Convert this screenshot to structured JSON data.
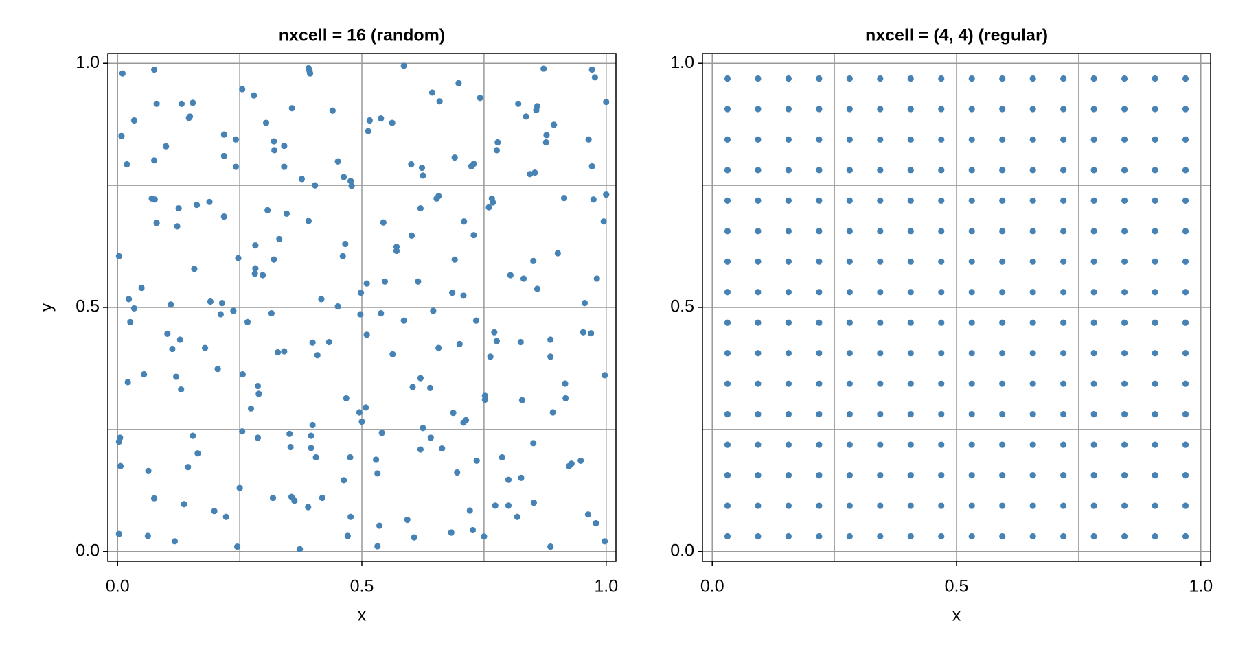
{
  "chart_data": [
    {
      "type": "scatter",
      "title": "nxcell = 16 (random)",
      "x_label": "x",
      "y_label": "y",
      "color": "#4682b4",
      "xlim": [
        -0.02,
        1.02
      ],
      "ylim": [
        -0.02,
        1.02
      ],
      "xticks": [
        {
          "value": 0,
          "label": "0.0"
        },
        0.5,
        {
          "value": 1,
          "label": "1.0"
        }
      ],
      "yticks": [
        {
          "value": 0,
          "label": "0.0"
        },
        0.5,
        {
          "value": 1,
          "label": "1.0"
        }
      ],
      "grid_lines": [
        0,
        0.25,
        0.5,
        0.75,
        1
      ],
      "x": [
        0.01,
        0.008,
        0.019,
        0.034,
        0.075,
        0.08,
        0.099,
        0.075,
        0.131,
        0.148,
        0.154,
        0.146,
        0.218,
        0.218,
        0.242,
        0.242,
        0.255,
        0.279,
        0.304,
        0.32,
        0.321,
        0.341,
        0.341,
        0.357,
        0.377,
        0.391,
        0.394,
        0.393,
        0.404,
        0.44,
        0.451,
        0.463,
        0.477,
        0.479,
        0.513,
        0.516,
        0.539,
        0.562,
        0.586,
        0.601,
        0.623,
        0.625,
        0.644,
        0.659,
        0.698,
        0.69,
        0.724,
        0.729,
        0.742,
        0.776,
        0.778,
        0.82,
        0.836,
        0.844,
        0.854,
        0.859,
        0.857,
        0.877,
        0.878,
        0.872,
        0.893,
        0.971,
        0.977,
        0.971,
        0.964,
        1.0,
        0.003,
        0.023,
        0.034,
        0.049,
        0.07,
        0.076,
        0.08,
        0.109,
        0.125,
        0.122,
        0.157,
        0.162,
        0.188,
        0.19,
        0.214,
        0.218,
        0.247,
        0.282,
        0.282,
        0.281,
        0.297,
        0.307,
        0.32,
        0.331,
        0.346,
        0.391,
        0.417,
        0.451,
        0.461,
        0.466,
        0.498,
        0.51,
        0.547,
        0.571,
        0.571,
        0.544,
        0.602,
        0.62,
        0.657,
        0.653,
        0.615,
        0.685,
        0.69,
        0.709,
        0.729,
        0.708,
        0.766,
        0.768,
        0.76,
        0.804,
        0.831,
        0.851,
        0.859,
        0.901,
        0.914,
        0.956,
        0.974,
        0.981,
        0.995,
        1.0,
        0.646,
        0.021,
        0.026,
        0.054,
        0.102,
        0.112,
        0.12,
        0.128,
        0.13,
        0.179,
        0.205,
        0.211,
        0.237,
        0.256,
        0.266,
        0.273,
        0.289,
        0.287,
        0.315,
        0.328,
        0.341,
        0.399,
        0.399,
        0.409,
        0.433,
        0.468,
        0.497,
        0.495,
        0.508,
        0.51,
        0.5,
        0.539,
        0.563,
        0.586,
        0.604,
        0.62,
        0.64,
        0.657,
        0.687,
        0.7,
        0.734,
        0.752,
        0.752,
        0.713,
        0.708,
        0.763,
        0.776,
        0.771,
        0.825,
        0.828,
        0.886,
        0.886,
        0.891,
        0.916,
        0.917,
        0.953,
        0.969,
        0.997,
        0.005,
        0.003,
        0.006,
        0.003,
        0.063,
        0.062,
        0.075,
        0.117,
        0.136,
        0.144,
        0.154,
        0.164,
        0.198,
        0.222,
        0.245,
        0.25,
        0.255,
        0.287,
        0.318,
        0.352,
        0.354,
        0.356,
        0.362,
        0.373,
        0.39,
        0.396,
        0.396,
        0.406,
        0.419,
        0.463,
        0.476,
        0.477,
        0.471,
        0.532,
        0.529,
        0.532,
        0.536,
        0.541,
        0.593,
        0.607,
        0.625,
        0.641,
        0.664,
        0.695,
        0.721,
        0.727,
        0.683,
        0.75,
        0.735,
        0.773,
        0.787,
        0.8,
        0.826,
        0.818,
        0.8,
        0.852,
        0.851,
        0.886,
        0.924,
        0.929,
        0.948,
        0.963,
        0.979,
        0.997,
        0.62
      ],
      "values": [
        0.979,
        0.851,
        0.793,
        0.883,
        0.987,
        0.917,
        0.83,
        0.801,
        0.917,
        0.891,
        0.919,
        0.888,
        0.854,
        0.81,
        0.844,
        0.788,
        0.947,
        0.934,
        0.878,
        0.84,
        0.822,
        0.831,
        0.788,
        0.908,
        0.763,
        0.99,
        0.979,
        0.984,
        0.75,
        0.903,
        0.799,
        0.767,
        0.759,
        0.749,
        0.861,
        0.883,
        0.887,
        0.878,
        0.995,
        0.793,
        0.786,
        0.77,
        0.94,
        0.922,
        0.959,
        0.807,
        0.789,
        0.794,
        0.929,
        0.822,
        0.838,
        0.917,
        0.891,
        0.773,
        0.776,
        0.912,
        0.904,
        0.838,
        0.853,
        0.989,
        0.874,
        0.987,
        0.971,
        0.789,
        0.844,
        0.921,
        0.605,
        0.517,
        0.498,
        0.54,
        0.723,
        0.721,
        0.673,
        0.506,
        0.703,
        0.666,
        0.579,
        0.71,
        0.716,
        0.512,
        0.509,
        0.686,
        0.601,
        0.627,
        0.58,
        0.569,
        0.566,
        0.699,
        0.598,
        0.64,
        0.692,
        0.677,
        0.517,
        0.502,
        0.605,
        0.63,
        0.53,
        0.549,
        0.553,
        0.624,
        0.616,
        0.674,
        0.647,
        0.703,
        0.728,
        0.723,
        0.553,
        0.53,
        0.598,
        0.676,
        0.648,
        0.524,
        0.723,
        0.715,
        0.705,
        0.566,
        0.559,
        0.595,
        0.538,
        0.611,
        0.724,
        0.509,
        0.721,
        0.559,
        0.676,
        0.731,
        0.493,
        0.347,
        0.47,
        0.363,
        0.446,
        0.415,
        0.358,
        0.434,
        0.332,
        0.417,
        0.374,
        0.486,
        0.493,
        0.363,
        0.47,
        0.293,
        0.323,
        0.339,
        0.488,
        0.408,
        0.41,
        0.428,
        0.259,
        0.402,
        0.429,
        0.314,
        0.486,
        0.285,
        0.295,
        0.444,
        0.266,
        0.488,
        0.404,
        0.473,
        0.337,
        0.355,
        0.335,
        0.417,
        0.284,
        0.425,
        0.473,
        0.319,
        0.311,
        0.269,
        0.264,
        0.399,
        0.431,
        0.449,
        0.429,
        0.31,
        0.434,
        0.399,
        0.285,
        0.344,
        0.314,
        0.449,
        0.447,
        0.361,
        0.233,
        0.225,
        0.175,
        0.036,
        0.165,
        0.032,
        0.109,
        0.021,
        0.097,
        0.173,
        0.237,
        0.201,
        0.083,
        0.071,
        0.01,
        0.13,
        0.246,
        0.233,
        0.11,
        0.241,
        0.214,
        0.112,
        0.104,
        0.005,
        0.091,
        0.237,
        0.212,
        0.193,
        0.11,
        0.146,
        0.193,
        0.071,
        0.032,
        0.011,
        0.188,
        0.16,
        0.053,
        0.243,
        0.065,
        0.029,
        0.253,
        0.233,
        0.211,
        0.162,
        0.084,
        0.044,
        0.039,
        0.031,
        0.186,
        0.094,
        0.193,
        0.147,
        0.151,
        0.071,
        0.094,
        0.1,
        0.222,
        0.01,
        0.175,
        0.18,
        0.186,
        0.076,
        0.058,
        0.021,
        0.209
      ]
    },
    {
      "type": "scatter",
      "title": "nxcell = (4, 4) (regular)",
      "x_label": "x",
      "color": "#4682b4",
      "xlim": [
        -0.02,
        1.02
      ],
      "ylim": [
        -0.02,
        1.02
      ],
      "xticks": [
        {
          "value": 0,
          "label": "0.0"
        },
        0.5,
        {
          "value": 1,
          "label": "1.0"
        }
      ],
      "yticks": [
        {
          "value": 0,
          "label": "0.0"
        },
        0.5,
        {
          "value": 1,
          "label": "1.0"
        }
      ],
      "grid_lines": [
        0,
        0.25,
        0.5,
        0.75,
        1
      ],
      "x": [
        0.03125,
        0.09375,
        0.15625,
        0.21875,
        0.28125,
        0.34375,
        0.40625,
        0.46875,
        0.53125,
        0.59375,
        0.65625,
        0.71875,
        0.78125,
        0.84375,
        0.90625,
        0.96875,
        0.03125,
        0.09375,
        0.15625,
        0.21875,
        0.28125,
        0.34375,
        0.40625,
        0.46875,
        0.53125,
        0.59375,
        0.65625,
        0.71875,
        0.78125,
        0.84375,
        0.90625,
        0.96875,
        0.03125,
        0.09375,
        0.15625,
        0.21875,
        0.28125,
        0.34375,
        0.40625,
        0.46875,
        0.53125,
        0.59375,
        0.65625,
        0.71875,
        0.78125,
        0.84375,
        0.90625,
        0.96875,
        0.03125,
        0.09375,
        0.15625,
        0.21875,
        0.28125,
        0.34375,
        0.40625,
        0.46875,
        0.53125,
        0.59375,
        0.65625,
        0.71875,
        0.78125,
        0.84375,
        0.90625,
        0.96875,
        0.03125,
        0.09375,
        0.15625,
        0.21875,
        0.28125,
        0.34375,
        0.40625,
        0.46875,
        0.53125,
        0.59375,
        0.65625,
        0.71875,
        0.78125,
        0.84375,
        0.90625,
        0.96875,
        0.03125,
        0.09375,
        0.15625,
        0.21875,
        0.28125,
        0.34375,
        0.40625,
        0.46875,
        0.53125,
        0.59375,
        0.65625,
        0.71875,
        0.78125,
        0.84375,
        0.90625,
        0.96875,
        0.03125,
        0.09375,
        0.15625,
        0.21875,
        0.28125,
        0.34375,
        0.40625,
        0.46875,
        0.53125,
        0.59375,
        0.65625,
        0.71875,
        0.78125,
        0.84375,
        0.90625,
        0.96875,
        0.03125,
        0.09375,
        0.15625,
        0.21875,
        0.28125,
        0.34375,
        0.40625,
        0.46875,
        0.53125,
        0.59375,
        0.65625,
        0.71875,
        0.78125,
        0.84375,
        0.90625,
        0.96875,
        0.03125,
        0.09375,
        0.15625,
        0.21875,
        0.28125,
        0.34375,
        0.40625,
        0.46875,
        0.53125,
        0.59375,
        0.65625,
        0.71875,
        0.78125,
        0.84375,
        0.90625,
        0.96875,
        0.03125,
        0.09375,
        0.15625,
        0.21875,
        0.28125,
        0.34375,
        0.40625,
        0.46875,
        0.53125,
        0.59375,
        0.65625,
        0.71875,
        0.78125,
        0.84375,
        0.90625,
        0.96875,
        0.03125,
        0.09375,
        0.15625,
        0.21875,
        0.28125,
        0.34375,
        0.40625,
        0.46875,
        0.53125,
        0.59375,
        0.65625,
        0.71875,
        0.78125,
        0.84375,
        0.90625,
        0.96875,
        0.03125,
        0.09375,
        0.15625,
        0.21875,
        0.28125,
        0.34375,
        0.40625,
        0.46875,
        0.53125,
        0.59375,
        0.65625,
        0.71875,
        0.78125,
        0.84375,
        0.90625,
        0.96875,
        0.03125,
        0.09375,
        0.15625,
        0.21875,
        0.28125,
        0.34375,
        0.40625,
        0.46875,
        0.53125,
        0.59375,
        0.65625,
        0.71875,
        0.78125,
        0.84375,
        0.90625,
        0.96875,
        0.03125,
        0.09375,
        0.15625,
        0.21875,
        0.28125,
        0.34375,
        0.40625,
        0.46875,
        0.53125,
        0.59375,
        0.65625,
        0.71875,
        0.78125,
        0.84375,
        0.90625,
        0.96875,
        0.03125,
        0.09375,
        0.15625,
        0.21875,
        0.28125,
        0.34375,
        0.40625,
        0.46875,
        0.53125,
        0.59375,
        0.65625,
        0.71875,
        0.78125,
        0.84375,
        0.90625,
        0.96875,
        0.03125,
        0.09375,
        0.15625,
        0.21875,
        0.28125,
        0.34375,
        0.40625,
        0.46875,
        0.53125,
        0.59375,
        0.65625,
        0.71875,
        0.78125,
        0.84375,
        0.90625,
        0.96875
      ],
      "values": [
        0.03125,
        0.03125,
        0.03125,
        0.03125,
        0.03125,
        0.03125,
        0.03125,
        0.03125,
        0.03125,
        0.03125,
        0.03125,
        0.03125,
        0.03125,
        0.03125,
        0.03125,
        0.03125,
        0.09375,
        0.09375,
        0.09375,
        0.09375,
        0.09375,
        0.09375,
        0.09375,
        0.09375,
        0.09375,
        0.09375,
        0.09375,
        0.09375,
        0.09375,
        0.09375,
        0.09375,
        0.09375,
        0.15625,
        0.15625,
        0.15625,
        0.15625,
        0.15625,
        0.15625,
        0.15625,
        0.15625,
        0.15625,
        0.15625,
        0.15625,
        0.15625,
        0.15625,
        0.15625,
        0.15625,
        0.15625,
        0.21875,
        0.21875,
        0.21875,
        0.21875,
        0.21875,
        0.21875,
        0.21875,
        0.21875,
        0.21875,
        0.21875,
        0.21875,
        0.21875,
        0.21875,
        0.21875,
        0.21875,
        0.21875,
        0.28125,
        0.28125,
        0.28125,
        0.28125,
        0.28125,
        0.28125,
        0.28125,
        0.28125,
        0.28125,
        0.28125,
        0.28125,
        0.28125,
        0.28125,
        0.28125,
        0.28125,
        0.28125,
        0.34375,
        0.34375,
        0.34375,
        0.34375,
        0.34375,
        0.34375,
        0.34375,
        0.34375,
        0.34375,
        0.34375,
        0.34375,
        0.34375,
        0.34375,
        0.34375,
        0.34375,
        0.34375,
        0.40625,
        0.40625,
        0.40625,
        0.40625,
        0.40625,
        0.40625,
        0.40625,
        0.40625,
        0.40625,
        0.40625,
        0.40625,
        0.40625,
        0.40625,
        0.40625,
        0.40625,
        0.40625,
        0.46875,
        0.46875,
        0.46875,
        0.46875,
        0.46875,
        0.46875,
        0.46875,
        0.46875,
        0.46875,
        0.46875,
        0.46875,
        0.46875,
        0.46875,
        0.46875,
        0.46875,
        0.46875,
        0.53125,
        0.53125,
        0.53125,
        0.53125,
        0.53125,
        0.53125,
        0.53125,
        0.53125,
        0.53125,
        0.53125,
        0.53125,
        0.53125,
        0.53125,
        0.53125,
        0.53125,
        0.53125,
        0.59375,
        0.59375,
        0.59375,
        0.59375,
        0.59375,
        0.59375,
        0.59375,
        0.59375,
        0.59375,
        0.59375,
        0.59375,
        0.59375,
        0.59375,
        0.59375,
        0.59375,
        0.59375,
        0.65625,
        0.65625,
        0.65625,
        0.65625,
        0.65625,
        0.65625,
        0.65625,
        0.65625,
        0.65625,
        0.65625,
        0.65625,
        0.65625,
        0.65625,
        0.65625,
        0.65625,
        0.65625,
        0.71875,
        0.71875,
        0.71875,
        0.71875,
        0.71875,
        0.71875,
        0.71875,
        0.71875,
        0.71875,
        0.71875,
        0.71875,
        0.71875,
        0.71875,
        0.71875,
        0.71875,
        0.71875,
        0.78125,
        0.78125,
        0.78125,
        0.78125,
        0.78125,
        0.78125,
        0.78125,
        0.78125,
        0.78125,
        0.78125,
        0.78125,
        0.78125,
        0.78125,
        0.78125,
        0.78125,
        0.78125,
        0.84375,
        0.84375,
        0.84375,
        0.84375,
        0.84375,
        0.84375,
        0.84375,
        0.84375,
        0.84375,
        0.84375,
        0.84375,
        0.84375,
        0.84375,
        0.84375,
        0.84375,
        0.84375,
        0.90625,
        0.90625,
        0.90625,
        0.90625,
        0.90625,
        0.90625,
        0.90625,
        0.90625,
        0.90625,
        0.90625,
        0.90625,
        0.90625,
        0.90625,
        0.90625,
        0.90625,
        0.90625,
        0.96875,
        0.96875,
        0.96875,
        0.96875,
        0.96875,
        0.96875,
        0.96875,
        0.96875,
        0.96875,
        0.96875,
        0.96875,
        0.96875,
        0.96875,
        0.96875,
        0.96875,
        0.96875
      ]
    }
  ]
}
